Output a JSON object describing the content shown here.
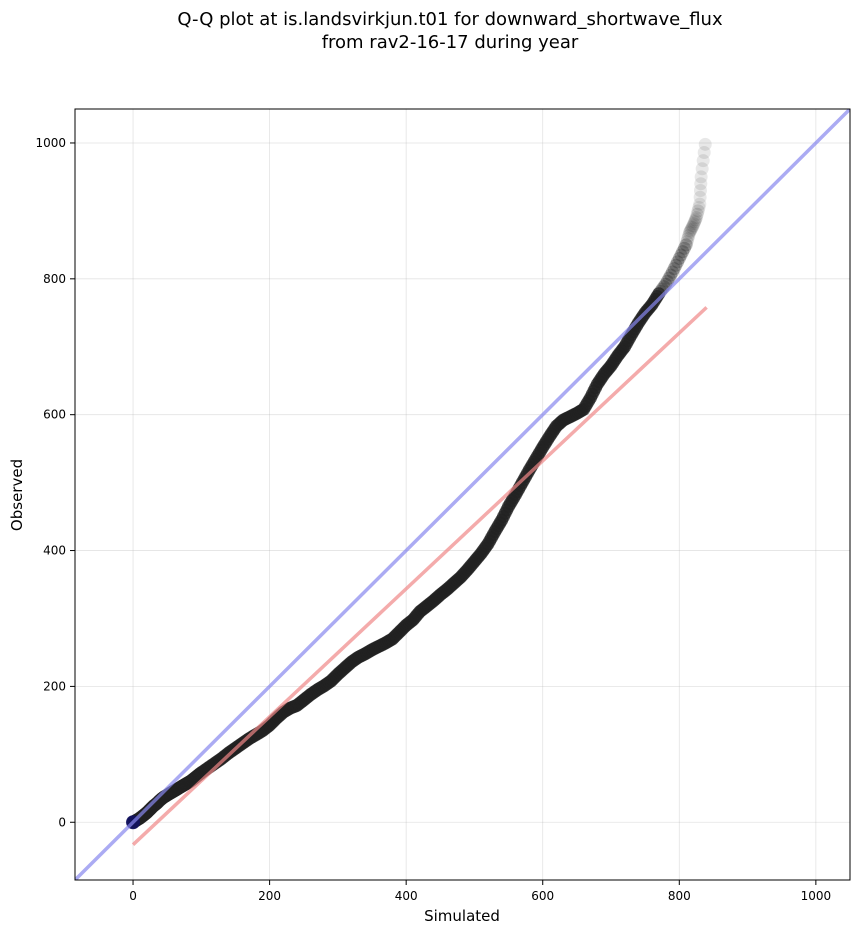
{
  "chart_data": {
    "type": "scatter",
    "title_lines": [
      "Q-Q plot at is.landsvirkjun.t01 for downward_shortwave_flux",
      "from rav2-16-17 during year"
    ],
    "xlabel": "Simulated",
    "ylabel": "Observed",
    "xlim": [
      -85,
      1050
    ],
    "ylim": [
      -85,
      1050
    ],
    "x_ticks": [
      0,
      200,
      400,
      600,
      800,
      1000
    ],
    "y_ticks": [
      0,
      200,
      400,
      600,
      800,
      1000
    ],
    "grid": true,
    "reference_line": {
      "slope": 1,
      "intercept": 0,
      "color": "#8888ee"
    },
    "fit_line": {
      "x": [
        0,
        840
      ],
      "y": [
        -33,
        758
      ],
      "color": "#f08888"
    },
    "point_color": "#222222",
    "start_point_color": "#101060",
    "points": [
      [
        0,
        0
      ],
      [
        5,
        3
      ],
      [
        10,
        6
      ],
      [
        15,
        10
      ],
      [
        20,
        14
      ],
      [
        25,
        19
      ],
      [
        30,
        24
      ],
      [
        35,
        28
      ],
      [
        40,
        33
      ],
      [
        45,
        37
      ],
      [
        50,
        40
      ],
      [
        55,
        43
      ],
      [
        60,
        46
      ],
      [
        65,
        49
      ],
      [
        70,
        52
      ],
      [
        75,
        55
      ],
      [
        80,
        58
      ],
      [
        85,
        61
      ],
      [
        90,
        65
      ],
      [
        95,
        69
      ],
      [
        100,
        73
      ],
      [
        110,
        80
      ],
      [
        120,
        87
      ],
      [
        130,
        94
      ],
      [
        140,
        102
      ],
      [
        150,
        109
      ],
      [
        160,
        116
      ],
      [
        170,
        123
      ],
      [
        180,
        129
      ],
      [
        190,
        135
      ],
      [
        200,
        143
      ],
      [
        210,
        153
      ],
      [
        220,
        162
      ],
      [
        230,
        168
      ],
      [
        240,
        172
      ],
      [
        250,
        180
      ],
      [
        260,
        188
      ],
      [
        270,
        195
      ],
      [
        280,
        201
      ],
      [
        290,
        208
      ],
      [
        300,
        218
      ],
      [
        310,
        227
      ],
      [
        320,
        236
      ],
      [
        330,
        243
      ],
      [
        340,
        248
      ],
      [
        350,
        254
      ],
      [
        360,
        259
      ],
      [
        370,
        264
      ],
      [
        380,
        270
      ],
      [
        390,
        280
      ],
      [
        400,
        290
      ],
      [
        410,
        298
      ],
      [
        420,
        310
      ],
      [
        430,
        318
      ],
      [
        440,
        326
      ],
      [
        450,
        335
      ],
      [
        460,
        343
      ],
      [
        470,
        352
      ],
      [
        480,
        361
      ],
      [
        490,
        372
      ],
      [
        500,
        384
      ],
      [
        510,
        396
      ],
      [
        520,
        410
      ],
      [
        530,
        428
      ],
      [
        540,
        445
      ],
      [
        550,
        465
      ],
      [
        560,
        482
      ],
      [
        570,
        500
      ],
      [
        580,
        518
      ],
      [
        590,
        535
      ],
      [
        600,
        552
      ],
      [
        610,
        568
      ],
      [
        620,
        583
      ],
      [
        630,
        592
      ],
      [
        640,
        597
      ],
      [
        650,
        602
      ],
      [
        660,
        608
      ],
      [
        670,
        625
      ],
      [
        680,
        645
      ],
      [
        690,
        660
      ],
      [
        700,
        672
      ],
      [
        710,
        687
      ],
      [
        720,
        700
      ],
      [
        730,
        718
      ],
      [
        740,
        735
      ],
      [
        750,
        750
      ],
      [
        760,
        762
      ],
      [
        770,
        778
      ],
      [
        780,
        792
      ],
      [
        790,
        810
      ],
      [
        800,
        830
      ],
      [
        810,
        850
      ],
      [
        815,
        868
      ],
      [
        820,
        878
      ],
      [
        825,
        890
      ],
      [
        830,
        910
      ],
      [
        832,
        950
      ],
      [
        838,
        998
      ]
    ]
  }
}
